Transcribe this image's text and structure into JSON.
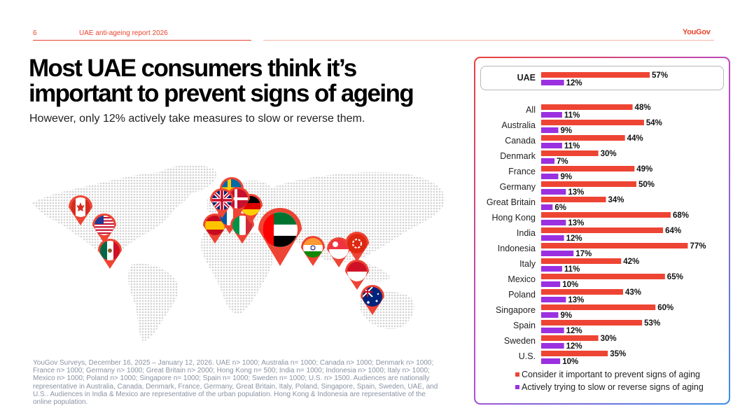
{
  "header": {
    "page_number": "6",
    "report_title": "UAE anti-ageing report 2026",
    "logo": "YouGov"
  },
  "headline": {
    "line1": "Most UAE consumers think it’s",
    "line2": "important to prevent signs of ageing"
  },
  "subheadline": "However, only 12% actively take measures to slow or reverse them.",
  "colors": {
    "accent": "#e8442f",
    "consider": "#ee4433",
    "actively": "#9b30e0"
  },
  "map": {
    "flags": [
      "canada-flag-icon",
      "usa-flag-icon",
      "mexico-flag-icon",
      "uk-flag-icon",
      "sweden-flag-icon",
      "denmark-flag-icon",
      "germany-flag-icon",
      "spain-flag-icon",
      "france-flag-icon",
      "italy-flag-icon",
      "uae-flag-icon",
      "india-flag-icon",
      "singapore-flag-icon",
      "hong-kong-flag-icon",
      "indonesia-flag-icon",
      "australia-flag-icon"
    ]
  },
  "footnote": "YouGov Surveys, December 16, 2025 – January 12, 2026. UAE n> 1000; Australia n= 1000; Canada n> 1000; Denmark n> 1000; France n> 1000; Germany n> 1000; Great Britain n> 2000; Hong Kong n= 500; India n= 1000; Indonesia n> 1000; Italy n> 1000; Mexico n> 1000; Poland n> 1000; Singapore n= 1000; Spain n= 1000; Sweden n= 1000; U.S. n> 1500. Audiences are nationally representative in Australia, Canada, Denmark, France, Germany, Great Britain, Italy, Poland, Singapore, Spain, Sweden, UAE, and U.S.. Audiences in India & Mexico are representative of the urban population. Hong Kong & Indonesia are representative of the online population.",
  "chart_data": {
    "type": "bar",
    "orientation": "horizontal",
    "categories": [
      "UAE",
      "All",
      "Australia",
      "Canada",
      "Denmark",
      "France",
      "Germany",
      "Great Britain",
      "Hong Kong",
      "India",
      "Indonesia",
      "Italy",
      "Mexico",
      "Poland",
      "Singapore",
      "Spain",
      "Sweden",
      "U.S."
    ],
    "highlighted_category": "UAE",
    "value_suffix": "%",
    "xlim": [
      0,
      100
    ],
    "grid": false,
    "legend_position": "bottom",
    "series": [
      {
        "name": "Consider it important to prevent signs of aging",
        "color": "#ee4433",
        "values": [
          57,
          48,
          54,
          44,
          30,
          49,
          50,
          34,
          68,
          64,
          77,
          42,
          65,
          43,
          60,
          53,
          30,
          35
        ]
      },
      {
        "name": "Actively trying to slow or reverse signs of aging",
        "color": "#9b30e0",
        "values": [
          12,
          11,
          9,
          11,
          7,
          9,
          13,
          6,
          13,
          12,
          17,
          11,
          10,
          13,
          9,
          12,
          12,
          10
        ]
      }
    ]
  }
}
